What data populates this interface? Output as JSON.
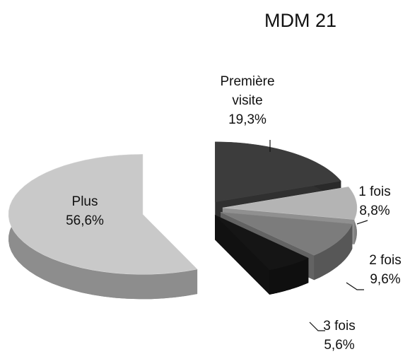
{
  "chart_data": {
    "type": "pie",
    "title": "MDM 21",
    "categories": [
      "Première visite",
      "1 fois",
      "2 fois",
      "3 fois",
      "Plus"
    ],
    "values": [
      19.3,
      8.8,
      9.6,
      5.6,
      56.6
    ],
    "value_labels": [
      "19,3%",
      "8,8%",
      "9,6%",
      "5,6%",
      "56,6%"
    ],
    "colors": [
      "#3c3c3c",
      "#b4b4b4",
      "#7c7c7c",
      "#151515",
      "#c9c9c9"
    ]
  }
}
